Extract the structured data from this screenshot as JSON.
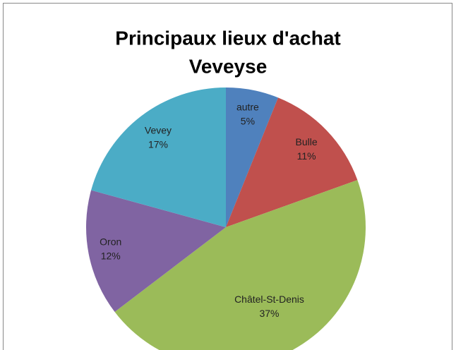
{
  "chart_data": {
    "type": "pie",
    "title": [
      "Principaux lieux d'achat",
      "Veveyse"
    ],
    "categories": [
      "autre",
      "Bulle",
      "Châtel-St-Denis",
      "Oron",
      "Vevey"
    ],
    "values": [
      5,
      11,
      37,
      12,
      17
    ],
    "value_labels": [
      "5%",
      "11%",
      "37%",
      "12%",
      "17%"
    ],
    "colors": [
      "#4f81bd",
      "#c0504d",
      "#9bbb59",
      "#8064a2",
      "#4bacc6"
    ]
  }
}
